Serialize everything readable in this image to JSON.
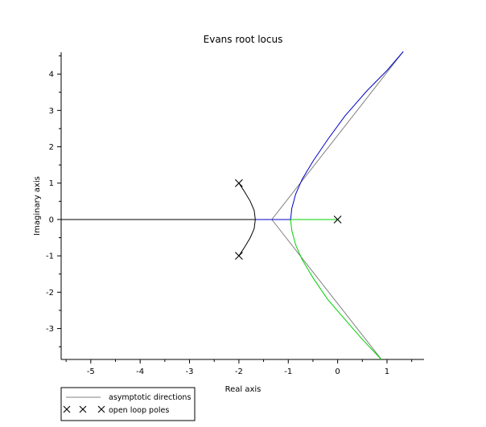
{
  "chart_data": {
    "type": "line",
    "title": "Evans root locus",
    "xlabel": "Real axis",
    "ylabel": "Imaginary axis",
    "xlim": [
      -5.6,
      1.75
    ],
    "ylim": [
      -3.85,
      4.6
    ],
    "x_ticks": [
      -5,
      -4,
      -3,
      -2,
      -1,
      0,
      1
    ],
    "y_ticks": [
      -3,
      -2,
      -1,
      0,
      1,
      2,
      3,
      4
    ],
    "x_tick_labels": [
      "-5",
      "-4",
      "-3",
      "-2",
      "-1",
      "0",
      "1"
    ],
    "y_tick_labels": [
      "-3",
      "-2",
      "-1",
      "0",
      "1",
      "2",
      "3",
      "4"
    ],
    "grid": false,
    "legend_position": "bottom-left",
    "legend": [
      {
        "label": "asymptotic directions"
      },
      {
        "label": "open loop poles"
      }
    ],
    "colors": {
      "asymptote": "#808080",
      "branch_upper": "#0000c8",
      "branch_lower": "#00d000",
      "branch_poles": "#000000"
    },
    "open_loop_poles": [
      {
        "re": -2,
        "im": 1
      },
      {
        "re": -2,
        "im": -1
      },
      {
        "re": 0,
        "im": 0
      }
    ],
    "asymptote_center": -1.333,
    "series": [
      {
        "role": "asymptote",
        "points": [
          [
            -1.333,
            0
          ],
          [
            1.33,
            4.62
          ]
        ]
      },
      {
        "role": "asymptote",
        "points": [
          [
            -1.333,
            0
          ],
          [
            0.9,
            -3.87
          ]
        ]
      },
      {
        "role": "branch_poles",
        "points": [
          [
            -2,
            1
          ],
          [
            -1.88,
            0.75
          ],
          [
            -1.77,
            0.5
          ],
          [
            -1.69,
            0.25
          ],
          [
            -1.667,
            0
          ],
          [
            -1.69,
            -0.25
          ],
          [
            -1.77,
            -0.5
          ],
          [
            -1.88,
            -0.75
          ],
          [
            -2,
            -1
          ]
        ]
      },
      {
        "role": "branch_upper",
        "points": [
          [
            -1.667,
            0
          ],
          [
            -0.952,
            0
          ]
        ]
      },
      {
        "role": "branch_upper",
        "points": [
          [
            -0.952,
            0
          ],
          [
            -0.93,
            0.3
          ],
          [
            -0.85,
            0.7
          ],
          [
            -0.72,
            1.1
          ],
          [
            -0.5,
            1.6
          ],
          [
            -0.2,
            2.2
          ],
          [
            0.15,
            2.85
          ],
          [
            0.6,
            3.55
          ],
          [
            1.0,
            4.1
          ],
          [
            1.33,
            4.62
          ]
        ]
      },
      {
        "role": "branch_lower",
        "points": [
          [
            -0.952,
            0
          ],
          [
            0,
            0
          ]
        ]
      },
      {
        "role": "branch_lower",
        "points": [
          [
            -0.952,
            0
          ],
          [
            -0.93,
            -0.3
          ],
          [
            -0.85,
            -0.7
          ],
          [
            -0.72,
            -1.1
          ],
          [
            -0.5,
            -1.6
          ],
          [
            -0.2,
            -2.2
          ],
          [
            0.15,
            -2.75
          ],
          [
            0.5,
            -3.3
          ],
          [
            0.9,
            -3.87
          ]
        ]
      }
    ]
  }
}
